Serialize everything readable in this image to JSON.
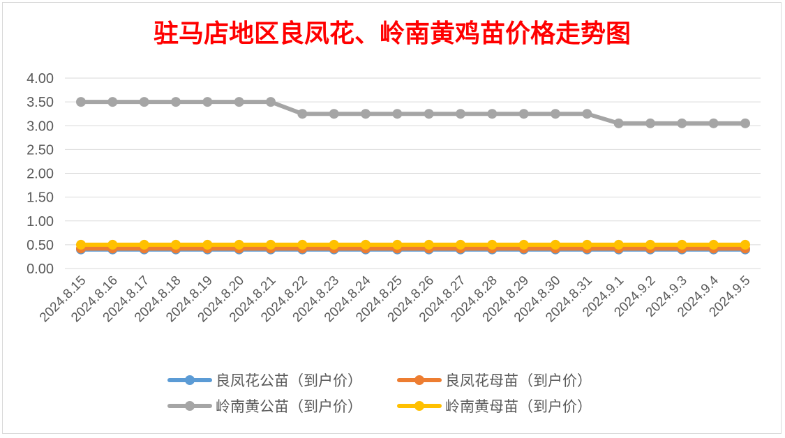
{
  "chart_data": {
    "type": "line",
    "title": "驻马店地区良凤花、岭南黄鸡苗价格走势图",
    "xlabel": "",
    "ylabel": "",
    "ylim": [
      0,
      4
    ],
    "ytick_step": 0.5,
    "ytick_labels": [
      "0.00",
      "0.50",
      "1.00",
      "1.50",
      "2.00",
      "2.50",
      "3.00",
      "3.50",
      "4.00"
    ],
    "grid": "horizontal",
    "legend_position": "bottom",
    "title_color": "#ff0000",
    "categories": [
      "2024.8.15",
      "2024.8.16",
      "2024.8.17",
      "2024.8.18",
      "2024.8.19",
      "2024.8.20",
      "2024.8.21",
      "2024.8.22",
      "2024.8.23",
      "2024.8.24",
      "2024.8.25",
      "2024.8.26",
      "2024.8.27",
      "2024.8.28",
      "2024.8.29",
      "2024.8.30",
      "2024.8.31",
      "2024.9.1",
      "2024.9.2",
      "2024.9.3",
      "2024.9.4",
      "2024.9.5"
    ],
    "series": [
      {
        "name": "良凤花公苗（到户价）",
        "color": "#5b9bd5",
        "values": [
          0.4,
          0.4,
          0.4,
          0.4,
          0.4,
          0.4,
          0.4,
          0.4,
          0.4,
          0.4,
          0.4,
          0.4,
          0.4,
          0.4,
          0.4,
          0.4,
          0.4,
          0.4,
          0.4,
          0.4,
          0.4,
          0.4
        ]
      },
      {
        "name": "良凤花母苗（到户价）",
        "color": "#ed7d31",
        "values": [
          0.42,
          0.42,
          0.42,
          0.42,
          0.42,
          0.42,
          0.42,
          0.42,
          0.42,
          0.42,
          0.42,
          0.42,
          0.42,
          0.42,
          0.42,
          0.42,
          0.42,
          0.42,
          0.42,
          0.42,
          0.42,
          0.42
        ]
      },
      {
        "name": "岭南黄公苗（到户价）",
        "color": "#a5a5a5",
        "values": [
          3.5,
          3.5,
          3.5,
          3.5,
          3.5,
          3.5,
          3.5,
          3.25,
          3.25,
          3.25,
          3.25,
          3.25,
          3.25,
          3.25,
          3.25,
          3.25,
          3.25,
          3.05,
          3.05,
          3.05,
          3.05,
          3.05
        ]
      },
      {
        "name": "岭南黄母苗（到户价）",
        "color": "#ffc000",
        "values": [
          0.5,
          0.5,
          0.5,
          0.5,
          0.5,
          0.5,
          0.5,
          0.5,
          0.5,
          0.5,
          0.5,
          0.5,
          0.5,
          0.5,
          0.5,
          0.5,
          0.5,
          0.5,
          0.5,
          0.5,
          0.5,
          0.5
        ]
      }
    ]
  }
}
